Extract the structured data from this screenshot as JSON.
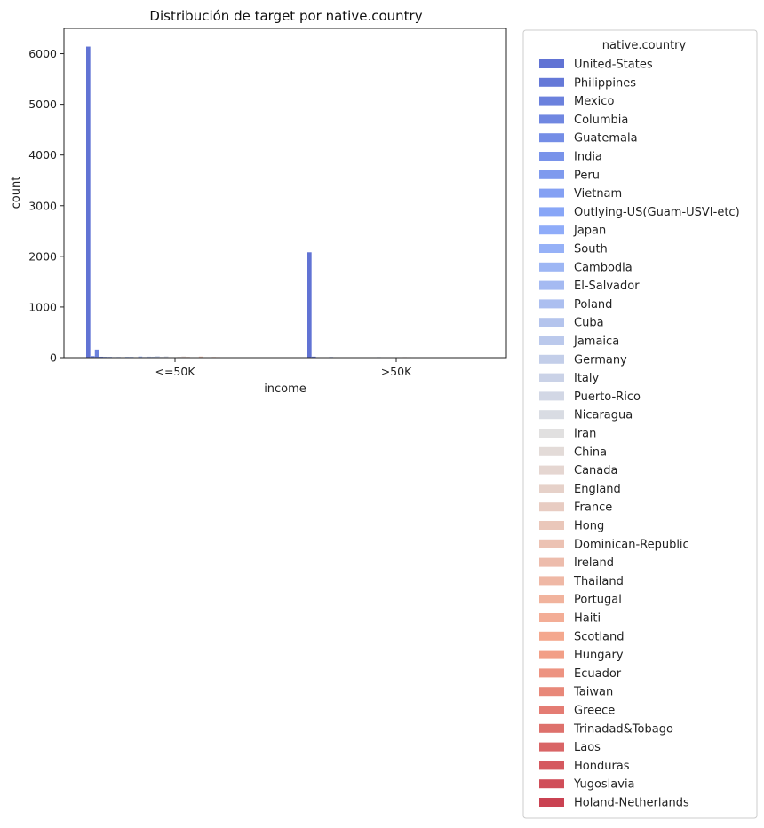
{
  "chart_data": {
    "type": "bar",
    "title": "Distribución de target por native.country",
    "xlabel": "income",
    "ylabel": "count",
    "categories": [
      "<=50K",
      ">50K"
    ],
    "ylim": [
      0,
      6500
    ],
    "yticks": [
      0,
      1000,
      2000,
      3000,
      4000,
      5000,
      6000
    ],
    "grid": false,
    "legend": {
      "title": "native.country",
      "placement": "outside-right"
    },
    "palette": "coolwarm",
    "series": [
      {
        "name": "United-States",
        "values": [
          6140,
          2080
        ]
      },
      {
        "name": "Philippines",
        "values": [
          30,
          20
        ]
      },
      {
        "name": "Mexico",
        "values": [
          160,
          8
        ]
      },
      {
        "name": "Columbia",
        "values": [
          18,
          2
        ]
      },
      {
        "name": "Guatemala",
        "values": [
          15,
          1
        ]
      },
      {
        "name": "India",
        "values": [
          14,
          12
        ]
      },
      {
        "name": "Peru",
        "values": [
          10,
          2
        ]
      },
      {
        "name": "Vietnam",
        "values": [
          12,
          2
        ]
      },
      {
        "name": "Outlying-US(Guam-USVI-etc)",
        "values": [
          5,
          0
        ]
      },
      {
        "name": "Japan",
        "values": [
          14,
          8
        ]
      },
      {
        "name": "South",
        "values": [
          14,
          5
        ]
      },
      {
        "name": "Cambodia",
        "values": [
          6,
          3
        ]
      },
      {
        "name": "El-Salvador",
        "values": [
          24,
          2
        ]
      },
      {
        "name": "Poland",
        "values": [
          12,
          4
        ]
      },
      {
        "name": "Cuba",
        "values": [
          20,
          8
        ]
      },
      {
        "name": "Jamaica",
        "values": [
          18,
          3
        ]
      },
      {
        "name": "Germany",
        "values": [
          28,
          12
        ]
      },
      {
        "name": "Italy",
        "values": [
          14,
          9
        ]
      },
      {
        "name": "Puerto-Rico",
        "values": [
          26,
          4
        ]
      },
      {
        "name": "Nicaragua",
        "values": [
          8,
          1
        ]
      },
      {
        "name": "Iran",
        "values": [
          8,
          6
        ]
      },
      {
        "name": "China",
        "values": [
          16,
          7
        ]
      },
      {
        "name": "Canada",
        "values": [
          24,
          12
        ]
      },
      {
        "name": "England",
        "values": [
          16,
          10
        ]
      },
      {
        "name": "France",
        "values": [
          6,
          5
        ]
      },
      {
        "name": "Hong",
        "values": [
          5,
          2
        ]
      },
      {
        "name": "Dominican-Republic",
        "values": [
          22,
          1
        ]
      },
      {
        "name": "Ireland",
        "values": [
          7,
          2
        ]
      },
      {
        "name": "Thailand",
        "values": [
          6,
          2
        ]
      },
      {
        "name": "Portugal",
        "values": [
          12,
          2
        ]
      },
      {
        "name": "Haiti",
        "values": [
          10,
          1
        ]
      },
      {
        "name": "Scotland",
        "values": [
          4,
          1
        ]
      },
      {
        "name": "Hungary",
        "values": [
          4,
          2
        ]
      },
      {
        "name": "Ecuador",
        "values": [
          8,
          2
        ]
      },
      {
        "name": "Taiwan",
        "values": [
          8,
          9
        ]
      },
      {
        "name": "Greece",
        "values": [
          6,
          3
        ]
      },
      {
        "name": "Trinadad&Tobago",
        "values": [
          6,
          1
        ]
      },
      {
        "name": "Laos",
        "values": [
          5,
          1
        ]
      },
      {
        "name": "Honduras",
        "values": [
          4,
          0
        ]
      },
      {
        "name": "Yugoslavia",
        "values": [
          5,
          3
        ]
      },
      {
        "name": "Holand-Netherlands",
        "values": [
          1,
          0
        ]
      }
    ]
  }
}
